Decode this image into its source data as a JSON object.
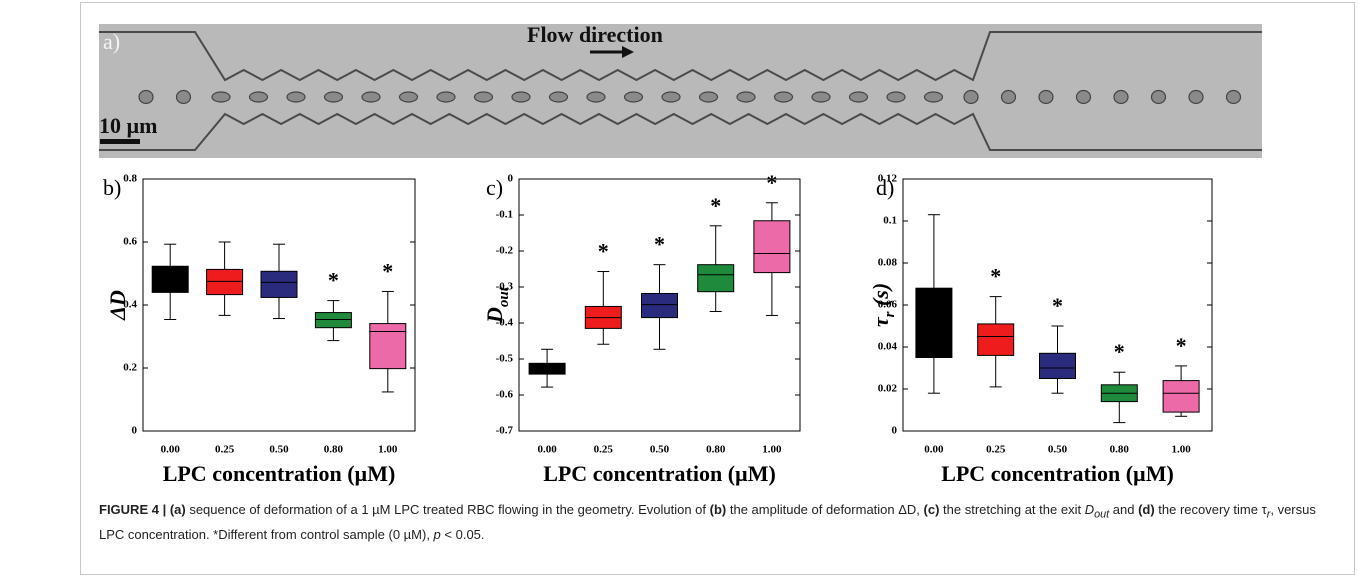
{
  "micrograph": {
    "label": "a)",
    "flow_label": "Flow direction",
    "scale_label": "10 µm"
  },
  "chart_data": [
    {
      "type": "box",
      "panel_label": "b)",
      "ylabel": [
        {
          "text": "ΔD"
        }
      ],
      "xlabel": "LPC concentration (µM)",
      "categories": [
        "0.00",
        "0.25",
        "0.50",
        "0.80",
        "1.00"
      ],
      "colors": [
        "#000000",
        "#ee1c1c",
        "#2b2b7d",
        "#1f8a3c",
        "#ec6aa8"
      ],
      "whisker_low": [
        0.354,
        0.367,
        0.357,
        0.287,
        0.124
      ],
      "q1": [
        0.44,
        0.433,
        0.424,
        0.328,
        0.198
      ],
      "median": [
        0.48,
        0.475,
        0.472,
        0.354,
        0.316
      ],
      "q3": [
        0.523,
        0.513,
        0.507,
        0.376,
        0.341
      ],
      "whisker_high": [
        0.593,
        0.6,
        0.593,
        0.414,
        0.443
      ],
      "markers": [
        null,
        null,
        null,
        "*",
        "*"
      ],
      "ylim": [
        0,
        0.8
      ],
      "yticks": [
        0,
        0.2,
        0.4,
        0.6,
        0.8
      ]
    },
    {
      "type": "box",
      "panel_label": "c)",
      "ylabel": [
        {
          "text": "D"
        },
        {
          "text": "out",
          "sub": true
        }
      ],
      "xlabel": "LPC concentration (µM)",
      "categories": [
        "0.00",
        "0.25",
        "0.50",
        "0.80",
        "1.00"
      ],
      "colors": [
        "#000000",
        "#ee1c1c",
        "#2b2b7d",
        "#1f8a3c",
        "#ec6aa8"
      ],
      "whisker_low": [
        -0.578,
        -0.459,
        -0.473,
        -0.368,
        -0.379
      ],
      "q1": [
        -0.542,
        -0.415,
        -0.385,
        -0.313,
        -0.26
      ],
      "median": [
        -0.525,
        -0.385,
        -0.349,
        -0.266,
        -0.207
      ],
      "q3": [
        -0.512,
        -0.354,
        -0.318,
        -0.238,
        -0.116
      ],
      "whisker_high": [
        -0.473,
        -0.257,
        -0.238,
        -0.13,
        -0.066
      ],
      "markers": [
        null,
        "*",
        "*",
        "*",
        "*"
      ],
      "ylim": [
        -0.7,
        0
      ],
      "yticks": [
        -0.7,
        -0.6,
        -0.5,
        -0.4,
        -0.3,
        -0.2,
        -0.1,
        0
      ]
    },
    {
      "type": "box",
      "panel_label": "d)",
      "ylabel": [
        {
          "text": "τ"
        },
        {
          "text": "r",
          "sub": true
        },
        {
          "text": " (s)"
        }
      ],
      "xlabel": "LPC concentration (µM)",
      "categories": [
        "0.00",
        "0.25",
        "0.50",
        "0.80",
        "1.00"
      ],
      "colors": [
        "#000000",
        "#ee1c1c",
        "#2b2b7d",
        "#1f8a3c",
        "#ec6aa8"
      ],
      "whisker_low": [
        0.018,
        0.021,
        0.018,
        0.004,
        0.007
      ],
      "q1": [
        0.035,
        0.036,
        0.025,
        0.014,
        0.009
      ],
      "median": [
        0.05,
        0.045,
        0.03,
        0.018,
        0.018
      ],
      "q3": [
        0.068,
        0.051,
        0.037,
        0.022,
        0.024
      ],
      "whisker_high": [
        0.103,
        0.064,
        0.05,
        0.028,
        0.031
      ],
      "markers": [
        null,
        "*",
        "*",
        "*",
        "*"
      ],
      "ylim": [
        0,
        0.12
      ],
      "yticks": [
        0,
        0.02,
        0.04,
        0.06,
        0.08,
        0.1,
        0.12
      ]
    }
  ],
  "caption": [
    {
      "text": "FIGURE 4 | ",
      "b": true
    },
    {
      "text": "(a)",
      "b": true
    },
    {
      "text": " sequence of deformation of a 1 µM LPC treated RBC flowing in the geometry. Evolution of "
    },
    {
      "text": "(b)",
      "b": true
    },
    {
      "text": " the amplitude of deformation ΔD, "
    },
    {
      "text": "(c)",
      "b": true
    },
    {
      "text": " the stretching at the exit "
    },
    {
      "text": "D",
      "i": true
    },
    {
      "text": "out",
      "i": true,
      "sub": true
    },
    {
      "text": " and "
    },
    {
      "text": "(d)",
      "b": true
    },
    {
      "text": " the recovery time τ"
    },
    {
      "text": "r",
      "i": true,
      "sub": true
    },
    {
      "text": ", versus LPC concentration. *Different from control sample (0 µM), "
    },
    {
      "text": "p",
      "i": true
    },
    {
      "text": " < 0.05."
    }
  ]
}
